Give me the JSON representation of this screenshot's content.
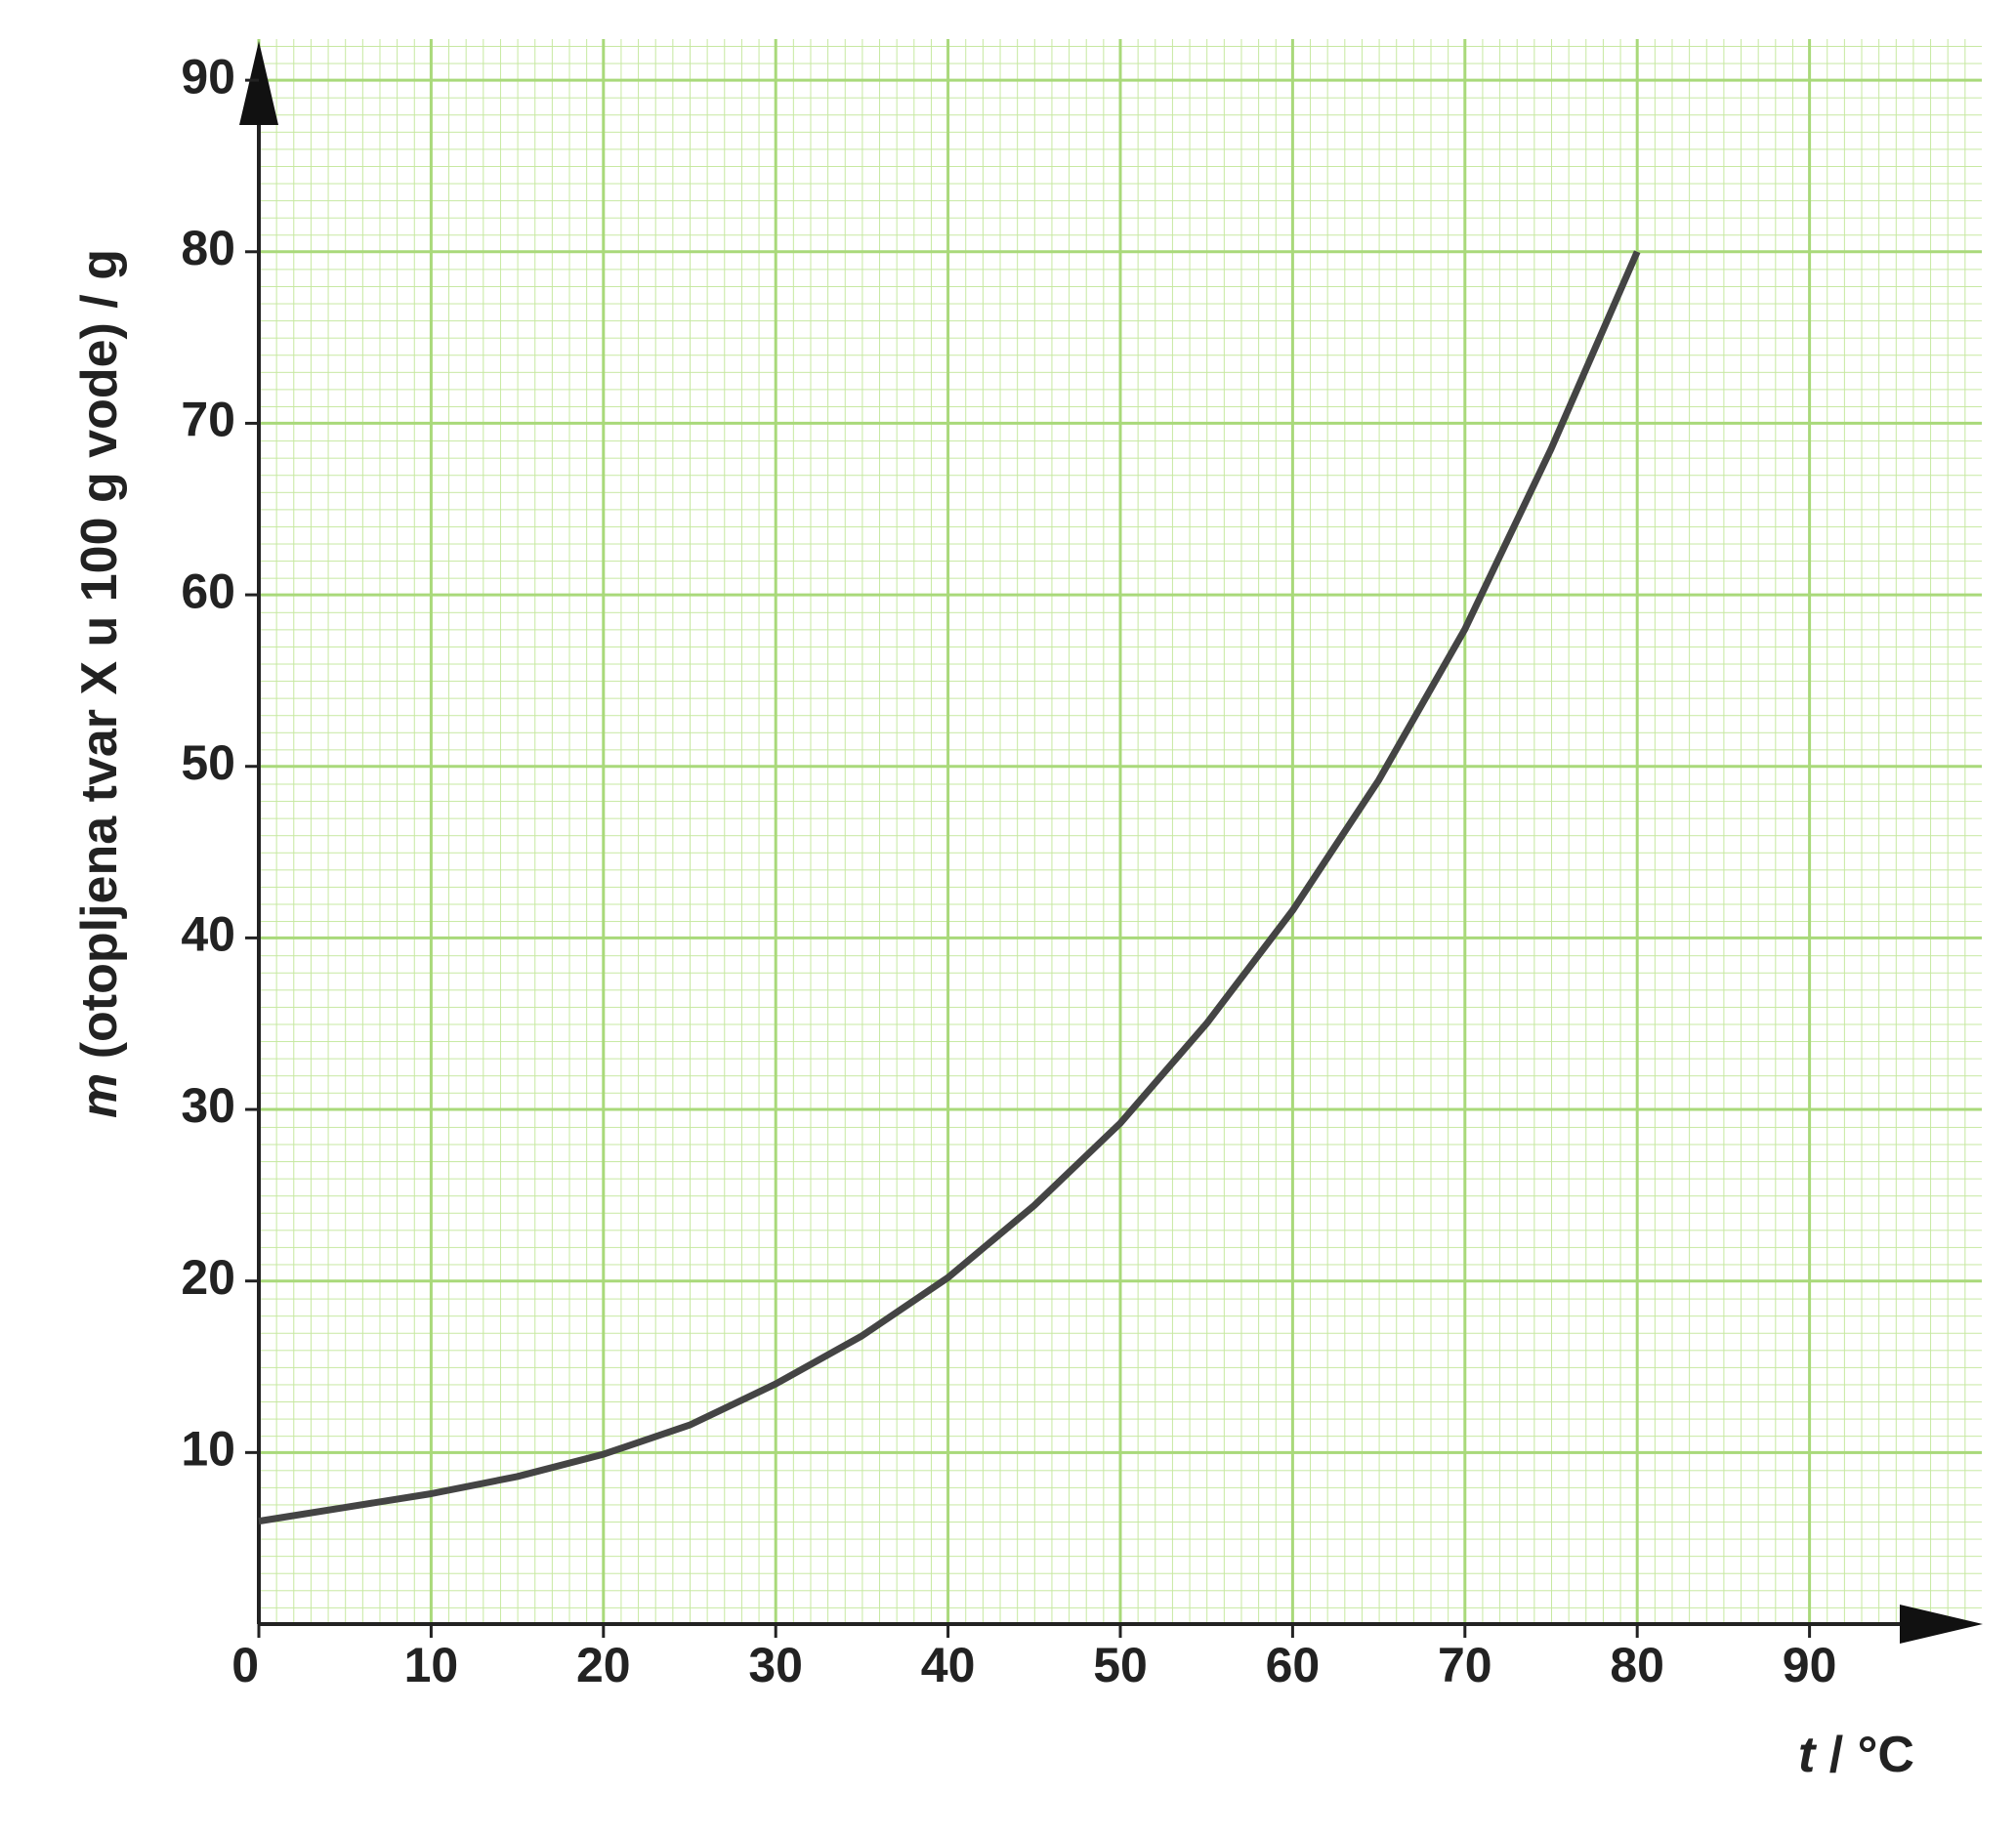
{
  "chart_data": {
    "type": "line",
    "x_label": {
      "symbol": "t",
      "text": " / °C"
    },
    "y_label": {
      "symbol": "m",
      "text": " (otopljena tvar X u 100 g vode) / g"
    },
    "x": [
      0,
      5,
      10,
      15,
      20,
      25,
      30,
      35,
      40,
      45,
      50,
      55,
      60,
      65,
      70,
      75,
      80
    ],
    "series": [
      {
        "color": "#444444",
        "values": [
          6,
          6.8,
          7.6,
          8.6,
          9.9,
          11.6,
          14,
          16.8,
          20.2,
          24.4,
          29.2,
          35,
          41.6,
          49.2,
          58,
          68.5,
          80
        ]
      }
    ],
    "xlim": [
      0,
      100
    ],
    "ylim": [
      0,
      92
    ],
    "xticks": [
      0,
      10,
      20,
      30,
      40,
      50,
      60,
      70,
      80,
      90
    ],
    "yticks": [
      10,
      20,
      30,
      40,
      50,
      60,
      70,
      80,
      90
    ],
    "grid": true
  }
}
